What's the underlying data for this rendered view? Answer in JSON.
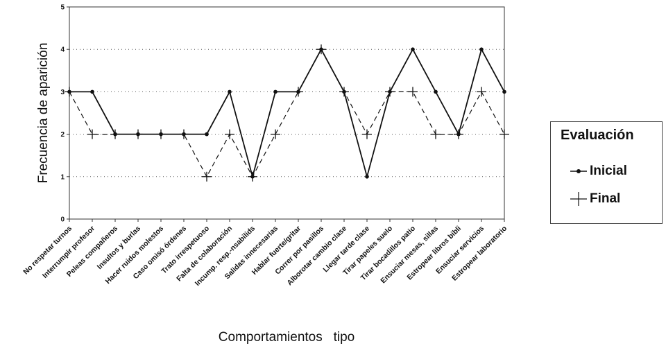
{
  "chart_data": {
    "type": "line",
    "ylabel": "Frecuencia de aparición",
    "xlabel": "Comportamientos   tipo",
    "ylim": [
      0,
      5
    ],
    "yticks": [
      "0",
      "1",
      "2",
      "3",
      "4",
      "5"
    ],
    "grid": "horizontal dotted",
    "legend_position": "right",
    "legend_title": "Evaluación",
    "categories": [
      "No respetar turnos",
      "Interrumpir profesor",
      "Peleas compañeros",
      "Insultos y burlas",
      "Hacer ruidos molestos",
      "Caso omisó órdenes",
      "Trato irrespetuoso",
      "Falta de colaboración",
      "Incump. resp.-nsabilids",
      "Salidas innecesarias",
      "Hablar fuerte/gritar",
      "Correr por pasillos",
      "Alborotar cambio clase",
      "Llegar tarde clase",
      "Tirar papeles suelo",
      "Tirar bocadillos patio",
      "Ensuciar mesas, sillas",
      "Estropear libros bibli",
      "Ensuciar servicios",
      "Estropear laboratorio"
    ],
    "series": [
      {
        "name": "Inicial",
        "style": "solid-dot",
        "values": [
          3,
          3,
          2,
          2,
          2,
          2,
          2,
          3,
          1,
          3,
          3,
          4,
          3,
          1,
          3,
          4,
          3,
          2,
          4,
          3
        ]
      },
      {
        "name": "Final",
        "style": "dashed-plus",
        "values": [
          3,
          2,
          2,
          2,
          2,
          2,
          1,
          2,
          1,
          2,
          3,
          4,
          3,
          2,
          3,
          3,
          2,
          2,
          3,
          2
        ]
      }
    ]
  }
}
